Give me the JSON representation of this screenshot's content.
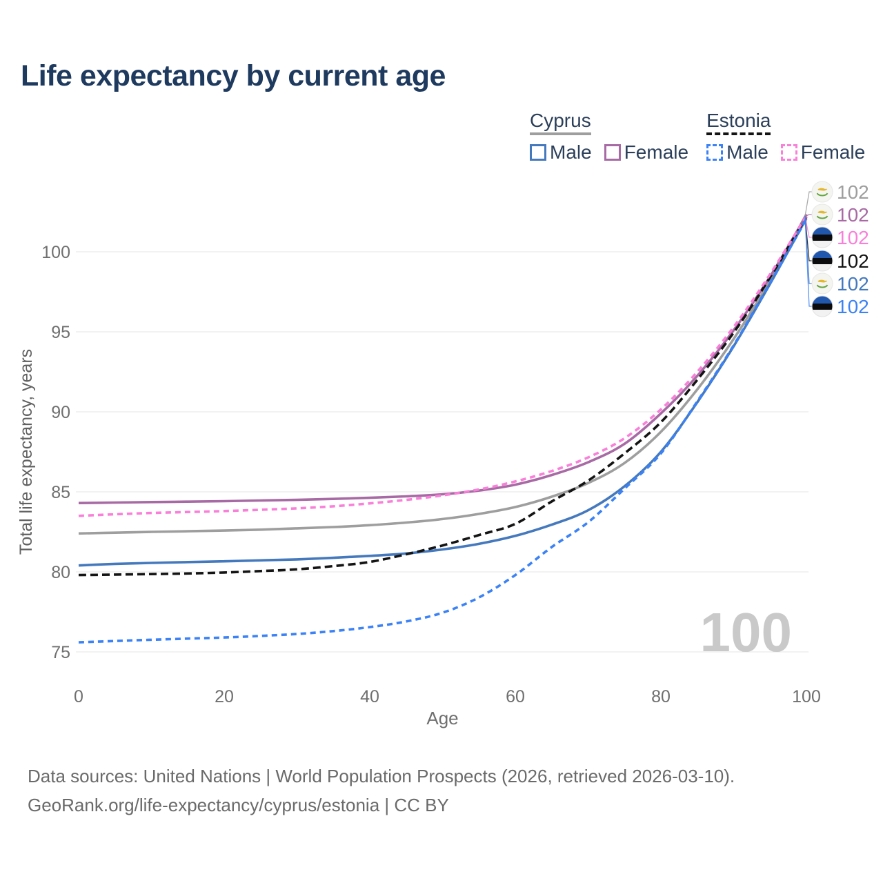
{
  "title": "Life expectancy by current age",
  "legend": {
    "groups": [
      {
        "label": "Cyprus",
        "line_color": "#9e9e9e",
        "line_style": "solid",
        "items": [
          {
            "label": "Male",
            "color": "#4579bd",
            "dashed": false
          },
          {
            "label": "Female",
            "color": "#a86aa4",
            "dashed": false
          }
        ]
      },
      {
        "label": "Estonia",
        "line_color": "#141414",
        "line_style": "dashed",
        "items": [
          {
            "label": "Male",
            "color": "#3b82f6",
            "dashed": true
          },
          {
            "label": "Female",
            "color": "#f97fd9",
            "dashed": true
          }
        ]
      }
    ]
  },
  "watermark_age": "100",
  "end_labels": [
    {
      "text": "102",
      "color": "#9e9e9e",
      "flag": "cyprus",
      "series": "Cyprus - Both sexes"
    },
    {
      "text": "102",
      "color": "#a86aa4",
      "flag": "cyprus",
      "series": "Cyprus - Female"
    },
    {
      "text": "102",
      "color": "#f97fd9",
      "flag": "estonia",
      "series": "Estonia - Female"
    },
    {
      "text": "102",
      "color": "#141414",
      "flag": "estonia",
      "series": "Estonia - Both sexes"
    },
    {
      "text": "102",
      "color": "#4579bd",
      "flag": "cyprus",
      "series": "Cyprus - Male"
    },
    {
      "text": "102",
      "color": "#3b82f6",
      "flag": "estonia",
      "series": "Estonia - Male"
    }
  ],
  "footer": {
    "line1": "Data sources: United Nations | World Population Prospects (2026, retrieved 2026-03-10).",
    "line2": "GeoRank.org/life-expectancy/cyprus/estonia | CC BY"
  },
  "chart_data": {
    "type": "line",
    "title": "Life expectancy by current age",
    "xlabel": "Age",
    "ylabel": "Total life expectancy, years",
    "x_ticks": [
      0,
      20,
      40,
      60,
      80,
      100
    ],
    "y_ticks": [
      75,
      80,
      85,
      90,
      95,
      100
    ],
    "xlim": [
      0,
      100
    ],
    "ylim": [
      74,
      103
    ],
    "grid": "horizontal",
    "legend_position": "top-right",
    "x": [
      0,
      5,
      10,
      15,
      20,
      25,
      30,
      35,
      40,
      45,
      50,
      55,
      60,
      65,
      70,
      75,
      80,
      85,
      90,
      95,
      100
    ],
    "series": [
      {
        "name": "Cyprus - Both sexes",
        "color": "#9e9e9e",
        "style": "solid",
        "values": [
          82.4,
          82.45,
          82.5,
          82.54,
          82.58,
          82.64,
          82.72,
          82.8,
          82.92,
          83.08,
          83.3,
          83.62,
          84.05,
          84.7,
          85.55,
          86.8,
          88.75,
          91.4,
          94.55,
          98.2,
          102.35
        ]
      },
      {
        "name": "Cyprus - Female",
        "color": "#a86aa4",
        "style": "solid",
        "values": [
          84.3,
          84.33,
          84.36,
          84.39,
          84.42,
          84.46,
          84.5,
          84.56,
          84.63,
          84.72,
          84.85,
          85.08,
          85.45,
          86.05,
          86.85,
          88.0,
          89.9,
          92.25,
          95.1,
          98.45,
          102.3
        ]
      },
      {
        "name": "Cyprus - Male",
        "color": "#4579bd",
        "style": "solid",
        "values": [
          80.4,
          80.5,
          80.56,
          80.61,
          80.66,
          80.72,
          80.78,
          80.88,
          81.0,
          81.15,
          81.4,
          81.75,
          82.25,
          82.95,
          83.85,
          85.35,
          87.5,
          90.6,
          94.1,
          98.0,
          102.1
        ]
      },
      {
        "name": "Estonia - Both sexes",
        "color": "#141414",
        "style": "dashed",
        "values": [
          79.8,
          79.83,
          79.86,
          79.9,
          79.96,
          80.05,
          80.16,
          80.36,
          80.62,
          81.1,
          81.65,
          82.3,
          83.0,
          84.4,
          85.7,
          87.4,
          89.35,
          92.0,
          94.95,
          98.4,
          102.2
        ]
      },
      {
        "name": "Estonia - Female",
        "color": "#f97fd9",
        "style": "dashed",
        "values": [
          83.5,
          83.6,
          83.68,
          83.74,
          83.8,
          83.88,
          83.97,
          84.1,
          84.28,
          84.5,
          84.78,
          85.15,
          85.65,
          86.3,
          87.15,
          88.35,
          90.15,
          92.5,
          95.3,
          98.6,
          102.25
        ]
      },
      {
        "name": "Estonia - Male",
        "color": "#3b82f6",
        "style": "dashed",
        "values": [
          75.6,
          75.68,
          75.76,
          75.83,
          75.9,
          76.0,
          76.12,
          76.3,
          76.55,
          76.9,
          77.45,
          78.4,
          79.8,
          81.55,
          83.1,
          85.2,
          87.4,
          90.65,
          94.15,
          98.05,
          102.05
        ]
      }
    ]
  }
}
